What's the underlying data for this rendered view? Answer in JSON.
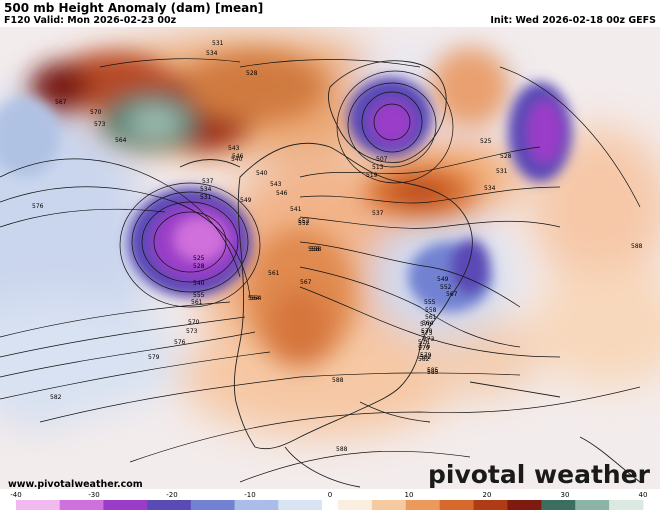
{
  "header": {
    "title": "500 mb Height Anomaly (dam) [mean]",
    "valid": "F120 Valid: Mon 2026-02-23 00z",
    "init": "Init: Wed 2026-02-18 00z GEFS"
  },
  "footer": {
    "website": "www.pivotalweather.com",
    "brand": "pivotal weather"
  },
  "colorbar": {
    "ticks": [
      "-40",
      "-30",
      "-20",
      "-10",
      "0",
      "10",
      "20",
      "30",
      "40"
    ],
    "range": [
      -40,
      40
    ],
    "negative_colors": [
      "#f2b8f0",
      "#d070dc",
      "#9a3cc8",
      "#5a4ab6",
      "#7282d2",
      "#a9bde8",
      "#d8e4f4"
    ],
    "positive_colors": [
      "#faeede",
      "#f6caa0",
      "#ec9a5c",
      "#d66a2c",
      "#b03c16",
      "#7e1a10",
      "#3c6e60",
      "#8cb4a6",
      "#dce8e2"
    ]
  },
  "map": {
    "contour_labels": [
      {
        "text": "531"
      },
      {
        "text": "534"
      },
      {
        "text": "528"
      },
      {
        "text": "567"
      },
      {
        "text": "570"
      },
      {
        "text": "573"
      },
      {
        "text": "564"
      },
      {
        "text": "576"
      },
      {
        "text": "537"
      },
      {
        "text": "534"
      },
      {
        "text": "531"
      },
      {
        "text": "525"
      },
      {
        "text": "528"
      },
      {
        "text": "540"
      },
      {
        "text": "543"
      },
      {
        "text": "546"
      },
      {
        "text": "549"
      },
      {
        "text": "552"
      },
      {
        "text": "555"
      },
      {
        "text": "558"
      },
      {
        "text": "561"
      },
      {
        "text": "564"
      },
      {
        "text": "570"
      },
      {
        "text": "573"
      },
      {
        "text": "576"
      },
      {
        "text": "579"
      },
      {
        "text": "582"
      },
      {
        "text": "540"
      },
      {
        "text": "543"
      },
      {
        "text": "540"
      },
      {
        "text": "546"
      },
      {
        "text": "541"
      },
      {
        "text": "552"
      },
      {
        "text": "558"
      },
      {
        "text": "567"
      },
      {
        "text": "561"
      },
      {
        "text": "564"
      },
      {
        "text": "570"
      },
      {
        "text": "573"
      },
      {
        "text": "576"
      },
      {
        "text": "579"
      },
      {
        "text": "582"
      },
      {
        "text": "585"
      },
      {
        "text": "588"
      },
      {
        "text": "537"
      },
      {
        "text": "519"
      },
      {
        "text": "513"
      },
      {
        "text": "507"
      },
      {
        "text": "525"
      },
      {
        "text": "528"
      },
      {
        "text": "531"
      },
      {
        "text": "534"
      },
      {
        "text": "549"
      },
      {
        "text": "552"
      },
      {
        "text": "555"
      },
      {
        "text": "558"
      },
      {
        "text": "561"
      },
      {
        "text": "564"
      },
      {
        "text": "567"
      },
      {
        "text": "570"
      },
      {
        "text": "573"
      },
      {
        "text": "576"
      },
      {
        "text": "579"
      },
      {
        "text": "582"
      },
      {
        "text": "585"
      },
      {
        "text": "588"
      },
      {
        "text": "588"
      }
    ]
  }
}
